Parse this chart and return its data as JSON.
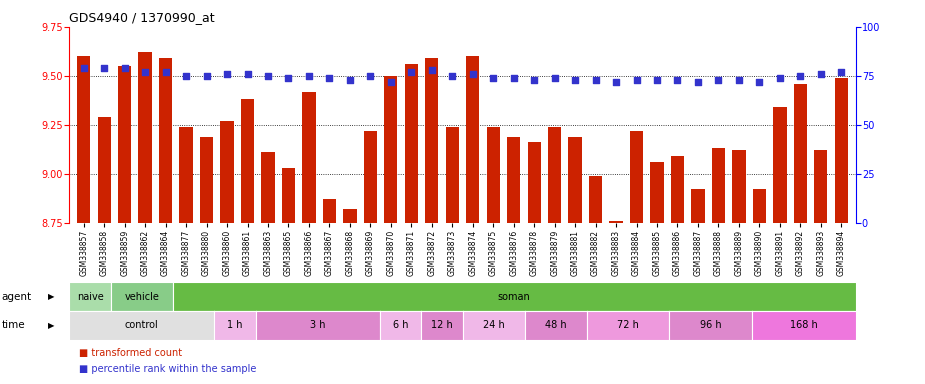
{
  "title": "GDS4940 / 1370990_at",
  "samples": [
    "GSM338857",
    "GSM338858",
    "GSM338859",
    "GSM338862",
    "GSM338864",
    "GSM338877",
    "GSM338880",
    "GSM338860",
    "GSM338861",
    "GSM338863",
    "GSM338865",
    "GSM338866",
    "GSM338867",
    "GSM338868",
    "GSM338869",
    "GSM338870",
    "GSM338871",
    "GSM338872",
    "GSM338873",
    "GSM338874",
    "GSM338875",
    "GSM338876",
    "GSM338878",
    "GSM338879",
    "GSM338881",
    "GSM338882",
    "GSM338883",
    "GSM338884",
    "GSM338885",
    "GSM338886",
    "GSM338887",
    "GSM338888",
    "GSM338889",
    "GSM338890",
    "GSM338891",
    "GSM338892",
    "GSM338893",
    "GSM338894"
  ],
  "bar_values": [
    9.6,
    9.29,
    9.55,
    9.62,
    9.59,
    9.24,
    9.19,
    9.27,
    9.38,
    9.11,
    9.03,
    9.42,
    8.87,
    8.82,
    9.22,
    9.5,
    9.56,
    9.59,
    9.24,
    9.6,
    9.24,
    9.19,
    9.16,
    9.24,
    9.19,
    8.99,
    8.76,
    9.22,
    9.06,
    9.09,
    8.92,
    9.13,
    9.12,
    8.92,
    9.34,
    9.46,
    9.12,
    9.49
  ],
  "percentile_values": [
    79,
    79,
    79,
    77,
    77,
    75,
    75,
    76,
    76,
    75,
    74,
    75,
    74,
    73,
    75,
    72,
    77,
    78,
    75,
    76,
    74,
    74,
    73,
    74,
    73,
    73,
    72,
    73,
    73,
    73,
    72,
    73,
    73,
    72,
    74,
    75,
    76,
    77
  ],
  "ylim_left": [
    8.75,
    9.75
  ],
  "ylim_right": [
    0,
    100
  ],
  "yticks_left": [
    8.75,
    9.0,
    9.25,
    9.5,
    9.75
  ],
  "yticks_right": [
    0,
    25,
    50,
    75,
    100
  ],
  "bar_color": "#cc2200",
  "percentile_color": "#3333cc",
  "agent_groups": [
    {
      "label": "naive",
      "start": 0,
      "end": 2,
      "color": "#aaddaa"
    },
    {
      "label": "vehicle",
      "start": 2,
      "end": 5,
      "color": "#88cc88"
    },
    {
      "label": "soman",
      "start": 5,
      "end": 38,
      "color": "#66bb44"
    }
  ],
  "time_groups": [
    {
      "label": "control",
      "start": 0,
      "end": 7,
      "color": "#e0e0e0"
    },
    {
      "label": "1 h",
      "start": 7,
      "end": 9,
      "color": "#f0b8e8"
    },
    {
      "label": "3 h",
      "start": 9,
      "end": 15,
      "color": "#dd88cc"
    },
    {
      "label": "6 h",
      "start": 15,
      "end": 17,
      "color": "#f0b8e8"
    },
    {
      "label": "12 h",
      "start": 17,
      "end": 19,
      "color": "#dd88cc"
    },
    {
      "label": "24 h",
      "start": 19,
      "end": 22,
      "color": "#f0b8e8"
    },
    {
      "label": "48 h",
      "start": 22,
      "end": 25,
      "color": "#dd88cc"
    },
    {
      "label": "72 h",
      "start": 25,
      "end": 29,
      "color": "#ee99dd"
    },
    {
      "label": "96 h",
      "start": 29,
      "end": 33,
      "color": "#dd88cc"
    },
    {
      "label": "168 h",
      "start": 33,
      "end": 38,
      "color": "#ee77dd"
    }
  ],
  "agent_row_label": "agent",
  "time_row_label": "time",
  "legend_items": [
    {
      "label": "transformed count",
      "color": "#cc2200"
    },
    {
      "label": "percentile rank within the sample",
      "color": "#3333cc"
    }
  ]
}
